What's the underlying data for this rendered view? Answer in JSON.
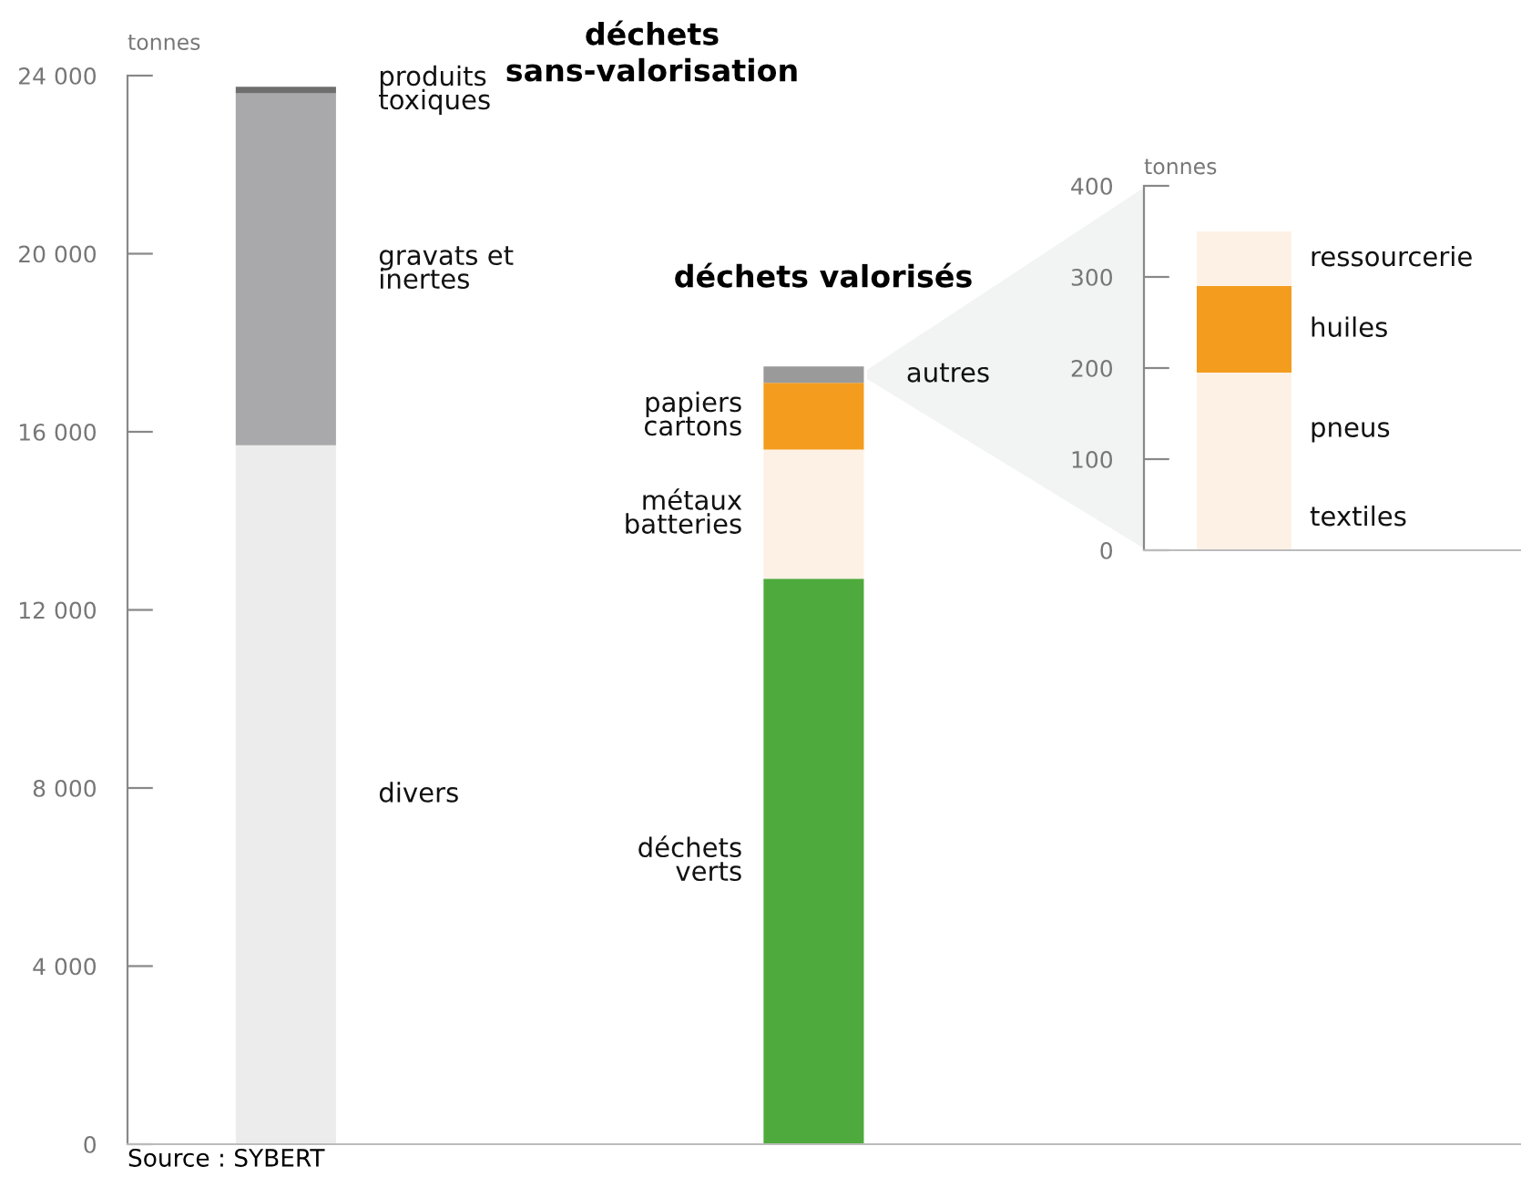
{
  "chart_data": [
    {
      "type": "bar",
      "stacked": true,
      "categories": [
        null,
        null
      ],
      "ylabel": "tonnes",
      "ylim": [
        0,
        24000
      ],
      "yticks": [
        0,
        {
          "value": 4000,
          "label": "4 000"
        },
        {
          "value": 8000,
          "label": "8 000"
        },
        {
          "value": 12000,
          "label": "12 000"
        },
        {
          "value": 16000,
          "label": "16 000"
        },
        {
          "value": 20000,
          "label": "20 000"
        },
        {
          "value": 24000,
          "label": "24 000"
        }
      ],
      "series": [
        {
          "name": "divers",
          "color": "#ececec",
          "values": [
            15700,
            null
          ]
        },
        {
          "name": "gravats et\ninertes",
          "color": "#a9a9ab",
          "values": [
            7900,
            null
          ]
        },
        {
          "name": "produits\ntoxiques",
          "color": "#6e6e6e",
          "values": [
            150,
            null
          ]
        },
        {
          "name": "déchets\nverts",
          "color": "#4eaa3c",
          "values": [
            null,
            12700
          ]
        },
        {
          "name": "métaux\nbatteries",
          "color": "#fdf1e6",
          "values": [
            null,
            2900
          ]
        },
        {
          "name": "papiers\ncartons",
          "color": "#f39c1e",
          "values": [
            null,
            1500
          ]
        },
        {
          "name": "autres",
          "color": "#9a9a9a",
          "values": [
            null,
            370
          ]
        }
      ],
      "annotations": [
        "déchets\nsans-valorisation",
        "déchets valorisés",
        "Source : SYBERT"
      ],
      "grid": false,
      "legend": false
    },
    {
      "type": "bar",
      "stacked": true,
      "categories": [
        null
      ],
      "ylabel": "tonnes",
      "ylim": [
        0,
        400
      ],
      "yticks": [
        0,
        100,
        200,
        300,
        400
      ],
      "series": [
        {
          "name": "textiles",
          "color": "#fdf1e6",
          "values": [
            70
          ]
        },
        {
          "name": "pneus",
          "color": "#fdf1e6",
          "values": [
            125
          ]
        },
        {
          "name": "huiles",
          "color": "#f39c1e",
          "values": [
            95
          ]
        },
        {
          "name": "ressourcerie",
          "color": "#fdf1e6",
          "values": [
            60
          ]
        }
      ],
      "grid": false,
      "legend": false
    }
  ]
}
